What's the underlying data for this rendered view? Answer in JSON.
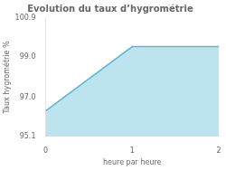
{
  "chart_data": {
    "type": "area",
    "title": "Evolution du taux d’hygrométrie",
    "x_label": "heure par heure",
    "y_label": "Taux hygrométrie %",
    "x": [
      0,
      1,
      2
    ],
    "values": [
      96.35,
      99.5,
      99.5
    ],
    "color": "#5bb8d4",
    "xlim": [
      0,
      2
    ],
    "ylim": [
      95.1,
      100.9
    ],
    "xticks": [
      0,
      1,
      2
    ],
    "yticks": [
      95.1,
      {
        "value": 97.0,
        "label": "97.0"
      },
      {
        "value": 99.0,
        "label": "99.0"
      },
      100.9
    ],
    "grid": false,
    "legend": false
  }
}
